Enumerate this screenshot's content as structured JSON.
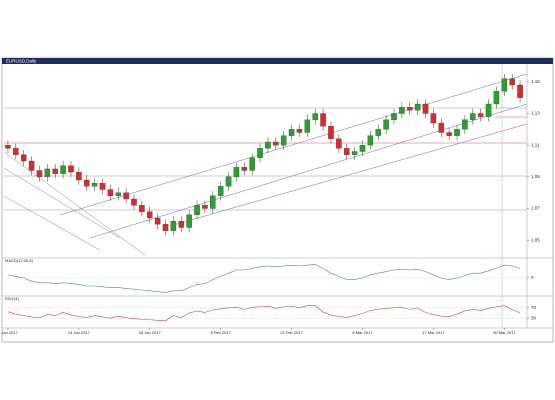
{
  "chart_data": [
    {
      "type": "candlestick",
      "title": "EURUSD,Daily",
      "categories": [
        "2 Jan 2017",
        null,
        null,
        null,
        null,
        null,
        null,
        null,
        null,
        "13 Jan 2017",
        null,
        null,
        null,
        null,
        null,
        null,
        null,
        null,
        "26 Jan 2017",
        null,
        null,
        null,
        null,
        null,
        null,
        null,
        null,
        "8 Feb 2017",
        null,
        null,
        null,
        null,
        null,
        null,
        null,
        null,
        "21 Feb 2017",
        null,
        null,
        null,
        null,
        null,
        null,
        null,
        null,
        "6 Mar 2017",
        null,
        null,
        null,
        null,
        null,
        null,
        null,
        null,
        "17 Mar 2017",
        null,
        null,
        null,
        null,
        null,
        null,
        null,
        null,
        "30 Mar 2017",
        null,
        null
      ],
      "open": [
        1.11,
        1.108,
        1.104,
        1.1,
        1.094,
        1.09,
        1.095,
        1.092,
        1.097,
        1.093,
        1.088,
        1.084,
        1.086,
        1.082,
        1.078,
        1.08,
        1.076,
        1.072,
        1.068,
        1.064,
        1.06,
        1.056,
        1.062,
        1.058,
        1.066,
        1.072,
        1.07,
        1.078,
        1.084,
        1.09,
        1.096,
        1.094,
        1.102,
        1.108,
        1.112,
        1.11,
        1.116,
        1.12,
        1.118,
        1.126,
        1.13,
        1.122,
        1.114,
        1.108,
        1.104,
        1.106,
        1.11,
        1.116,
        1.12,
        1.126,
        1.13,
        1.134,
        1.132,
        1.136,
        1.13,
        1.124,
        1.118,
        1.116,
        1.12,
        1.126,
        1.13,
        1.128,
        1.136,
        1.144,
        1.152,
        1.148
      ],
      "high": [
        1.113,
        1.111,
        1.107,
        1.103,
        1.097,
        1.098,
        1.098,
        1.1,
        1.1,
        1.096,
        1.091,
        1.089,
        1.089,
        1.085,
        1.083,
        1.083,
        1.079,
        1.075,
        1.071,
        1.067,
        1.063,
        1.065,
        1.065,
        1.069,
        1.075,
        1.075,
        1.081,
        1.087,
        1.093,
        1.099,
        1.099,
        1.105,
        1.111,
        1.115,
        1.115,
        1.119,
        1.123,
        1.123,
        1.129,
        1.133,
        1.133,
        1.125,
        1.117,
        1.111,
        1.109,
        1.113,
        1.119,
        1.123,
        1.129,
        1.133,
        1.137,
        1.137,
        1.139,
        1.139,
        1.133,
        1.127,
        1.121,
        1.123,
        1.129,
        1.133,
        1.133,
        1.139,
        1.147,
        1.155,
        1.155,
        1.151
      ],
      "low": [
        1.105,
        1.101,
        1.097,
        1.091,
        1.087,
        1.087,
        1.089,
        1.089,
        1.09,
        1.085,
        1.081,
        1.081,
        1.079,
        1.075,
        1.075,
        1.073,
        1.069,
        1.065,
        1.061,
        1.057,
        1.053,
        1.053,
        1.055,
        1.055,
        1.063,
        1.067,
        1.067,
        1.075,
        1.081,
        1.087,
        1.091,
        1.091,
        1.099,
        1.105,
        1.107,
        1.107,
        1.113,
        1.115,
        1.115,
        1.123,
        1.119,
        1.111,
        1.105,
        1.101,
        1.101,
        1.103,
        1.107,
        1.113,
        1.117,
        1.123,
        1.127,
        1.129,
        1.129,
        1.127,
        1.121,
        1.115,
        1.113,
        1.113,
        1.117,
        1.123,
        1.125,
        1.125,
        1.133,
        1.141,
        1.145,
        1.137
      ],
      "close": [
        1.108,
        1.104,
        1.1,
        1.094,
        1.09,
        1.095,
        1.092,
        1.097,
        1.093,
        1.088,
        1.084,
        1.086,
        1.082,
        1.078,
        1.08,
        1.076,
        1.072,
        1.068,
        1.064,
        1.06,
        1.056,
        1.062,
        1.058,
        1.066,
        1.072,
        1.07,
        1.078,
        1.084,
        1.09,
        1.096,
        1.094,
        1.102,
        1.108,
        1.112,
        1.11,
        1.116,
        1.12,
        1.118,
        1.126,
        1.13,
        1.122,
        1.114,
        1.108,
        1.104,
        1.106,
        1.11,
        1.116,
        1.12,
        1.126,
        1.13,
        1.134,
        1.132,
        1.136,
        1.13,
        1.124,
        1.118,
        1.116,
        1.12,
        1.126,
        1.13,
        1.128,
        1.136,
        1.144,
        1.152,
        1.148,
        1.14
      ],
      "up_color": "#2ca02c",
      "down_color": "#e02828",
      "ylim": [
        1.04,
        1.16
      ],
      "yticks": [
        1.05,
        1.07,
        1.09,
        1.11,
        1.13,
        1.15
      ]
    },
    {
      "type": "line",
      "title": "MACD(12,26,9)",
      "color": "#3a9a5a",
      "values": [
        0.2,
        0.1,
        0,
        -0.2,
        -0.3,
        -0.3,
        -0.35,
        -0.3,
        -0.35,
        -0.4,
        -0.5,
        -0.5,
        -0.55,
        -0.6,
        -0.6,
        -0.65,
        -0.7,
        -0.75,
        -0.8,
        -0.85,
        -0.9,
        -0.8,
        -0.8,
        -0.6,
        -0.4,
        -0.35,
        -0.1,
        0.1,
        0.3,
        0.5,
        0.5,
        0.6,
        0.7,
        0.75,
        0.7,
        0.75,
        0.8,
        0.75,
        0.8,
        0.85,
        0.6,
        0.3,
        0.1,
        -0.1,
        -0.1,
        0,
        0.2,
        0.3,
        0.4,
        0.5,
        0.55,
        0.5,
        0.55,
        0.4,
        0.2,
        0,
        -0.1,
        0,
        0.15,
        0.3,
        0.3,
        0.45,
        0.6,
        0.8,
        0.75,
        0.6
      ],
      "ylim": [
        -1,
        1
      ],
      "yticks": [
        0
      ]
    },
    {
      "type": "line",
      "title": "RSI(14)",
      "color": "#e04040",
      "values": [
        55,
        45,
        40,
        35,
        32,
        45,
        40,
        52,
        42,
        36,
        33,
        40,
        35,
        30,
        38,
        32,
        28,
        26,
        24,
        22,
        20,
        40,
        32,
        50,
        58,
        52,
        62,
        66,
        70,
        72,
        64,
        72,
        74,
        76,
        68,
        74,
        76,
        70,
        78,
        78,
        54,
        42,
        36,
        33,
        40,
        48,
        60,
        64,
        68,
        70,
        72,
        64,
        70,
        52,
        44,
        38,
        36,
        46,
        58,
        64,
        60,
        68,
        74,
        78,
        64,
        50
      ],
      "ylim": [
        0,
        100
      ],
      "yticks": [
        30,
        70
      ]
    }
  ]
}
